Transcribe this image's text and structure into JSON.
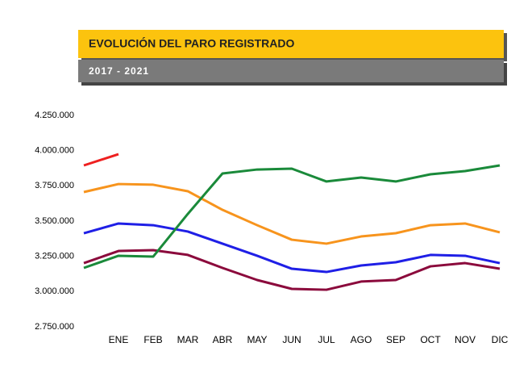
{
  "chart_data": {
    "type": "line",
    "title": "EVOLUCIÓN DEL PARO REGISTRADO",
    "subtitle": "2017 - 2021",
    "categories": [
      null,
      "ENE",
      "FEB",
      "MAR",
      "ABR",
      "MAY",
      "JUN",
      "JUL",
      "AGO",
      "SEP",
      "OCT",
      "NOV",
      "DIC"
    ],
    "series": [
      {
        "color": "#8b0a3c",
        "values": [
          3202000,
          3288000,
          3294000,
          3260000,
          3168000,
          3082000,
          3019000,
          3013000,
          3071000,
          3082000,
          3179000,
          3202000,
          3162000
        ]
      },
      {
        "color": "#1f1fe6",
        "values": [
          3414000,
          3483000,
          3471000,
          3426000,
          3340000,
          3254000,
          3162000,
          3139000,
          3185000,
          3208000,
          3260000,
          3254000,
          3202000
        ]
      },
      {
        "color": "#f7941d",
        "values": [
          3706000,
          3763000,
          3758000,
          3712000,
          3580000,
          3471000,
          3368000,
          3340000,
          3391000,
          3414000,
          3471000,
          3483000,
          3420000
        ]
      },
      {
        "color": "#1a8a3a",
        "values": [
          3168000,
          3254000,
          3248000,
          3551000,
          3838000,
          3866000,
          3872000,
          3781000,
          3809000,
          3781000,
          3832000,
          3855000,
          3895000
        ]
      },
      {
        "color": "#ee2020",
        "values": [
          3895000,
          3975000,
          null,
          null,
          null,
          null,
          null,
          null,
          null,
          null,
          null,
          null,
          null
        ]
      }
    ],
    "ylim": [
      2750000,
      4250000
    ],
    "yticks": [
      {
        "value": 2750000,
        "label": "2.750.000"
      },
      {
        "value": 3000000,
        "label": "3.000.000"
      },
      {
        "value": 3250000,
        "label": "3.250.000"
      },
      {
        "value": 3500000,
        "label": "3.500.000"
      },
      {
        "value": 3750000,
        "label": "3.750.000"
      },
      {
        "value": 4000000,
        "label": "4.000.000"
      },
      {
        "value": 4250000,
        "label": "4.250.000"
      }
    ],
    "grid": false
  }
}
